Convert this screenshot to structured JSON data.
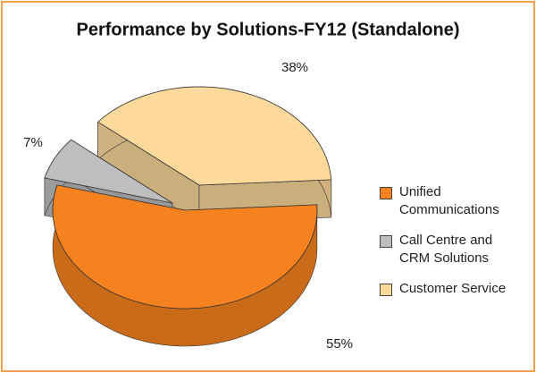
{
  "chart_data": {
    "type": "pie",
    "title": "Performance by Solutions-FY12 (Standalone)",
    "categories": [
      "Unified Communications",
      "Call Centre and CRM Solutions",
      "Customer Service"
    ],
    "values": [
      55,
      7,
      38
    ],
    "value_labels": [
      "55%",
      "7%",
      "38%"
    ],
    "colors": [
      "#f5821f",
      "#bcbec0",
      "#fdd99b"
    ],
    "legend": "right"
  }
}
